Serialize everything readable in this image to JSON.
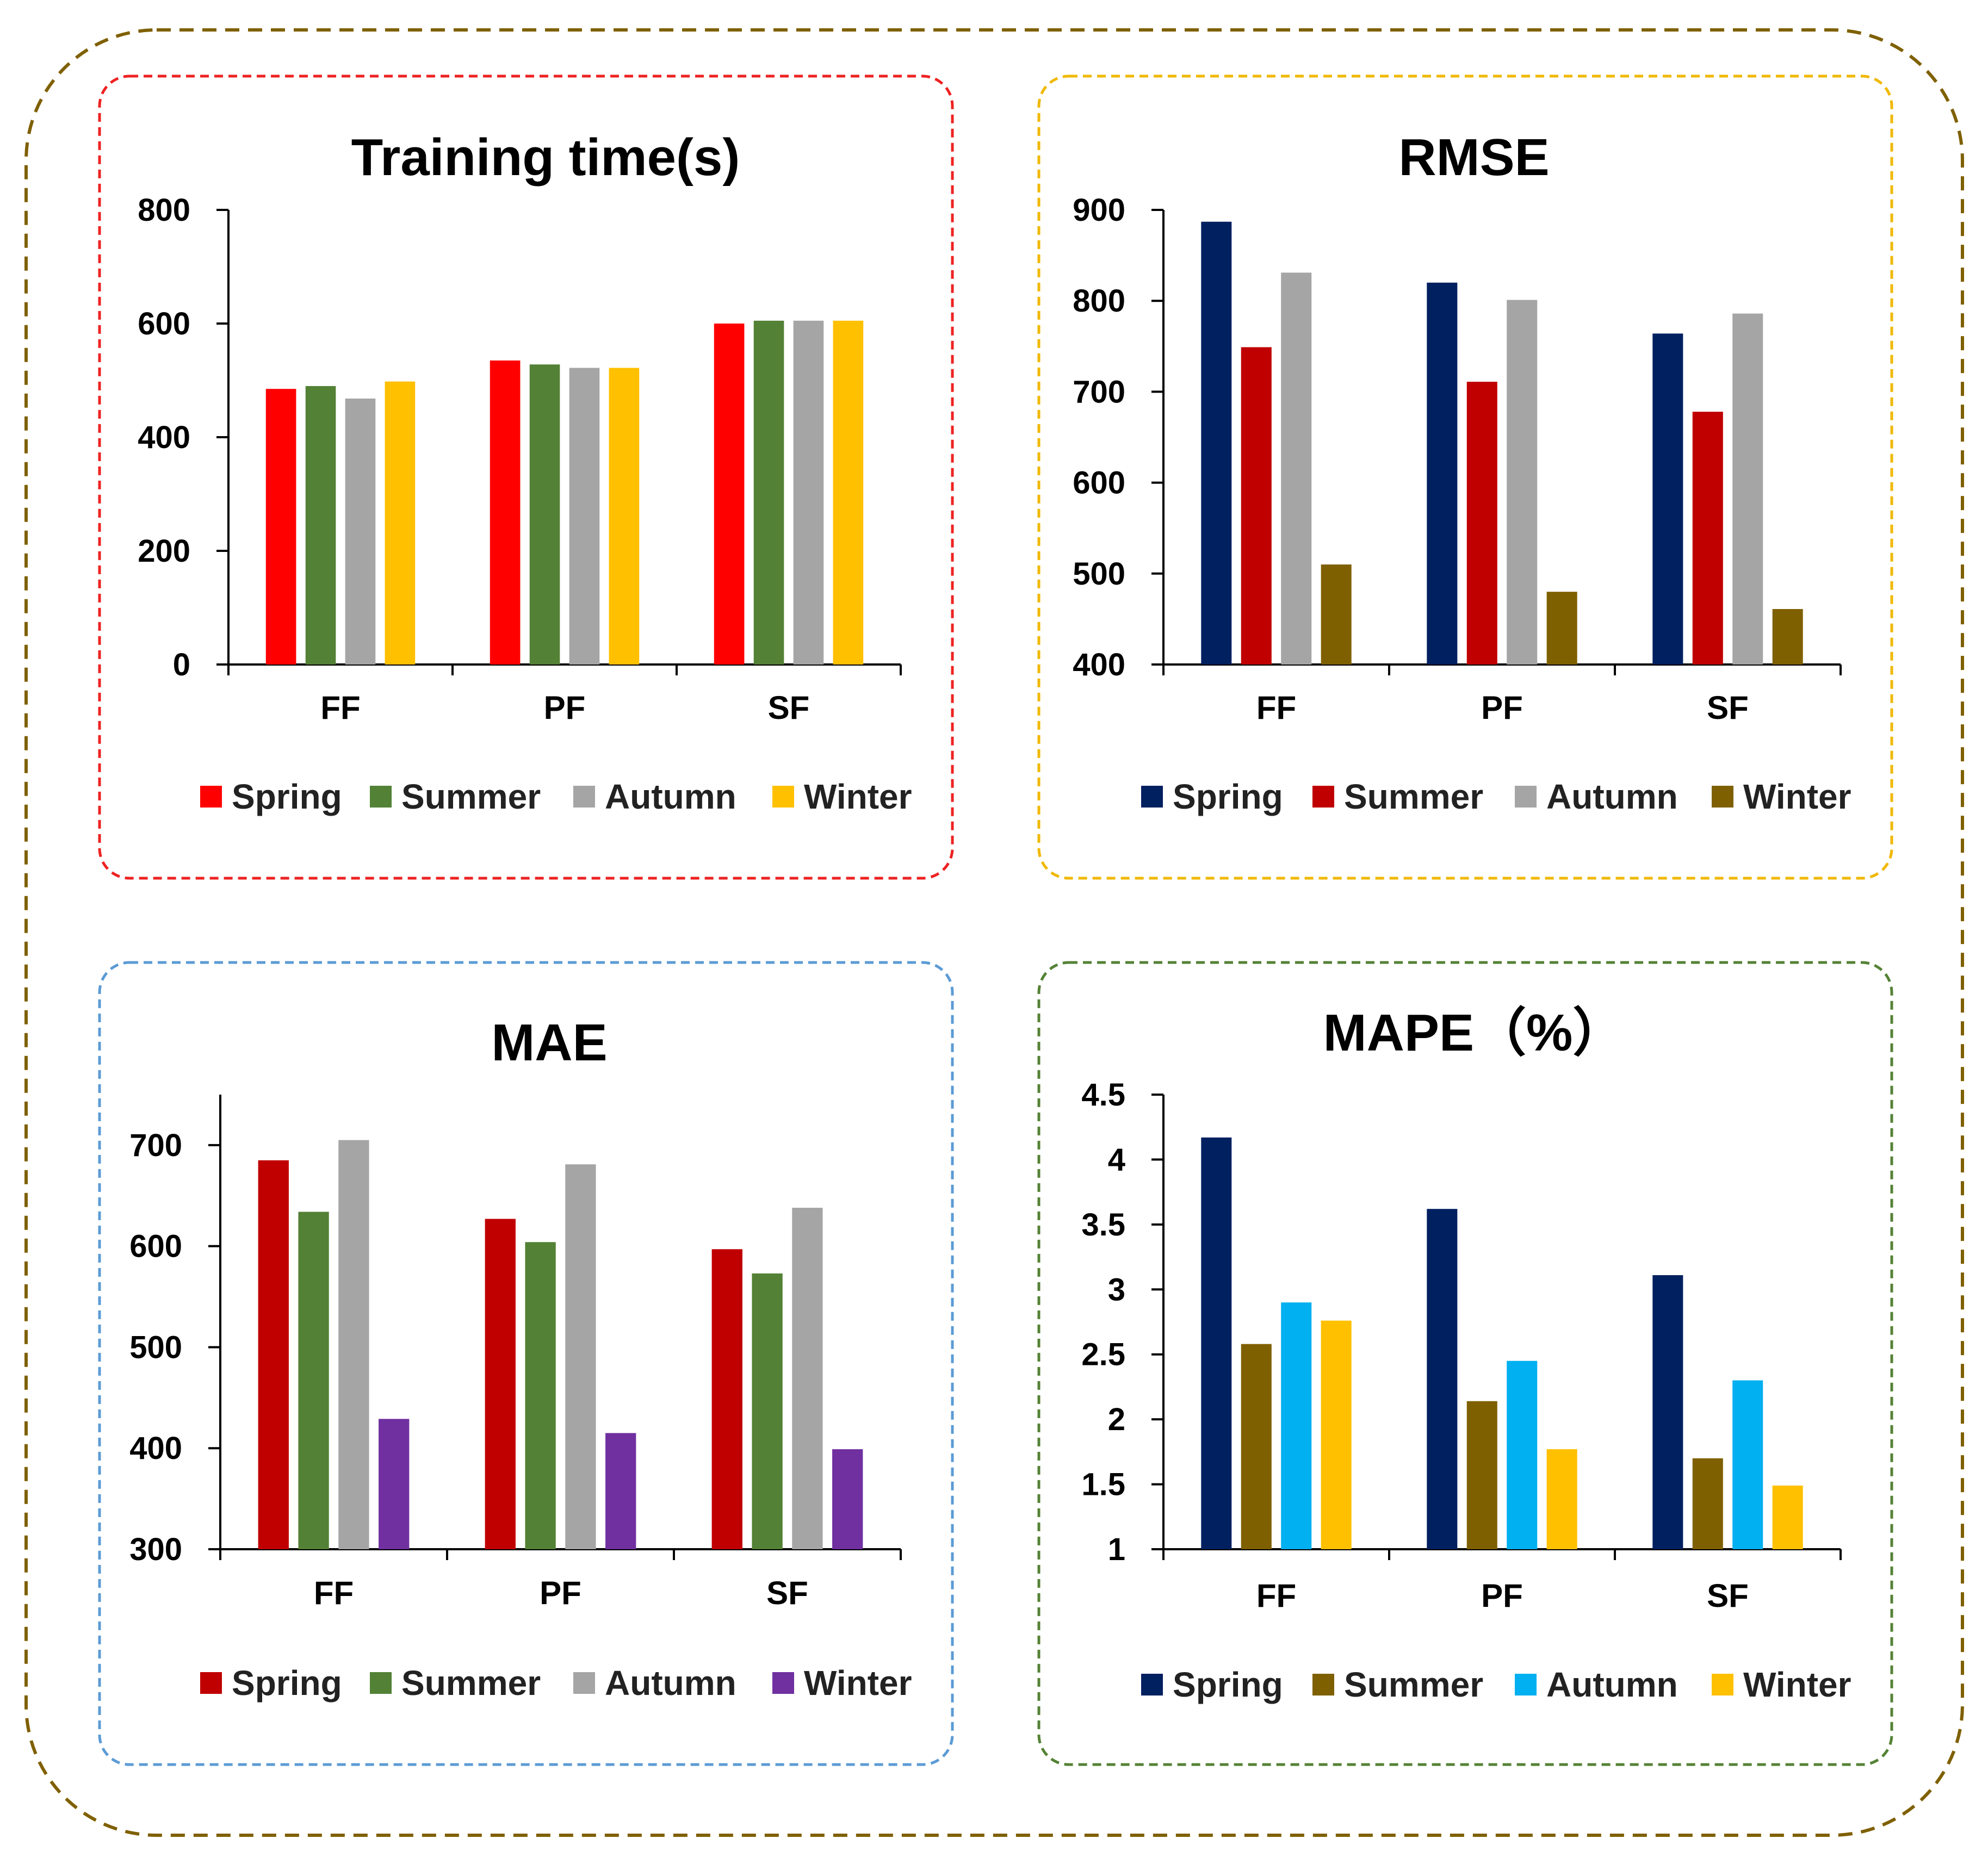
{
  "chart_data": [
    {
      "type": "bar",
      "title": "Training time(s)",
      "categories": [
        "FF",
        "PF",
        "SF"
      ],
      "ylim": [
        0,
        800
      ],
      "yticks": [
        0,
        200,
        400,
        600,
        800
      ],
      "tick_labels": [
        "0",
        "200",
        "400",
        "600",
        "800"
      ],
      "legend": "bottom",
      "frame_color": "#ee2222",
      "series": [
        {
          "name": "Spring",
          "color": "#ff0000",
          "values": [
            485,
            535,
            600
          ]
        },
        {
          "name": "Summer",
          "color": "#538135",
          "values": [
            490,
            528,
            605
          ]
        },
        {
          "name": "Autumn",
          "color": "#a5a5a5",
          "values": [
            468,
            522,
            605
          ]
        },
        {
          "name": "Winter",
          "color": "#ffc000",
          "values": [
            498,
            522,
            605
          ]
        }
      ]
    },
    {
      "type": "bar",
      "title": "RMSE",
      "categories": [
        "FF",
        "PF",
        "SF"
      ],
      "ylim": [
        400,
        900
      ],
      "yticks": [
        400,
        500,
        600,
        700,
        800,
        900
      ],
      "tick_labels": [
        "400",
        "500",
        "600",
        "700",
        "800",
        "900"
      ],
      "legend": "bottom",
      "frame_color": "#f0b800",
      "series": [
        {
          "name": "Spring",
          "color": "#002060",
          "values": [
            887,
            820,
            764
          ]
        },
        {
          "name": "Summer",
          "color": "#c00000",
          "values": [
            749,
            711,
            678
          ]
        },
        {
          "name": "Autumn",
          "color": "#a5a5a5",
          "values": [
            831,
            801,
            786
          ]
        },
        {
          "name": "Winter",
          "color": "#7f6000",
          "values": [
            510,
            480,
            461
          ]
        }
      ]
    },
    {
      "type": "bar",
      "title": "MAE",
      "categories": [
        "FF",
        "PF",
        "SF"
      ],
      "ylim": [
        300,
        750
      ],
      "yticks": [
        300,
        400,
        500,
        600,
        700
      ],
      "tick_labels": [
        "300",
        "400",
        "500",
        "600",
        "700"
      ],
      "legend": "bottom",
      "frame_color": "#5b9bd5",
      "series": [
        {
          "name": "Spring",
          "color": "#c00000",
          "values": [
            685,
            627,
            597
          ]
        },
        {
          "name": "Summer",
          "color": "#538135",
          "values": [
            634,
            604,
            573
          ]
        },
        {
          "name": "Autumn",
          "color": "#a5a5a5",
          "values": [
            705,
            681,
            638
          ]
        },
        {
          "name": "Winter",
          "color": "#7030a0",
          "values": [
            429,
            415,
            399
          ]
        }
      ]
    },
    {
      "type": "bar",
      "title": "MAPE（%）",
      "categories": [
        "FF",
        "PF",
        "SF"
      ],
      "ylim": [
        1,
        4.5
      ],
      "yticks": [
        1,
        1.5,
        2,
        2.5,
        3,
        3.5,
        4,
        4.5
      ],
      "tick_labels": [
        "1",
        "1.5",
        "2",
        "2.5",
        "3",
        "3.5",
        "4",
        "4.5"
      ],
      "legend": "bottom",
      "frame_color": "#548235",
      "series": [
        {
          "name": "Spring",
          "color": "#002060",
          "values": [
            4.17,
            3.62,
            3.11
          ]
        },
        {
          "name": "Summer",
          "color": "#7f6000",
          "values": [
            2.58,
            2.14,
            1.7
          ]
        },
        {
          "name": "Autumn",
          "color": "#00b0f0",
          "values": [
            2.9,
            2.45,
            2.3
          ]
        },
        {
          "name": "Winter",
          "color": "#ffc000",
          "values": [
            2.76,
            1.77,
            1.49
          ]
        }
      ]
    }
  ],
  "outer_frame_color": "#7f6000"
}
